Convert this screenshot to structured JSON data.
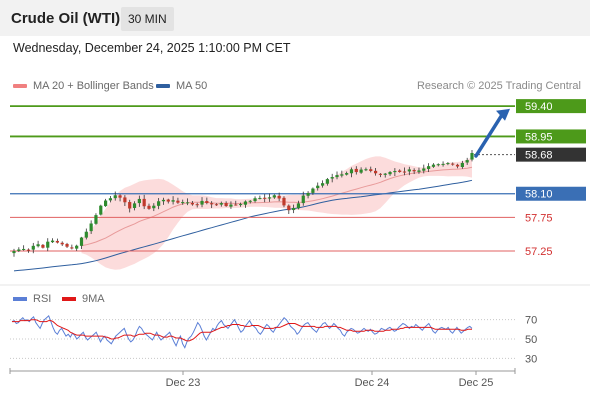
{
  "header": {
    "title": "Crude Oil (WTI)",
    "timeframe": "30 MIN",
    "date": "Wednesday, December 24, 2025 1:10:00 PM CET",
    "credit": "Research © 2025 Trading Central"
  },
  "legend": {
    "bollinger_label": "MA 20 + Bollinger Bands",
    "ma50_label": "MA 50",
    "bollinger_color": "#f08080",
    "ma50_color": "#2f5f9f"
  },
  "rsi_legend": {
    "rsi_label": "RSI",
    "ma9_label": "9MA",
    "rsi_color": "#5b7fd6",
    "ma9_color": "#e01818"
  },
  "colors": {
    "up": "#2e8b2e",
    "down": "#c0392b",
    "resistance": "#4d9a1a",
    "pivot": "#3a6fb5",
    "support": "#e06060",
    "arrow": "#2a62b0",
    "band_fill": "#fbd6d6"
  },
  "chart_data": [
    {
      "type": "candlestick",
      "x_tick_labels": [
        "Dec 23",
        "Dec 24",
        "Dec 25"
      ],
      "y_range": [
        56.85,
        59.55
      ],
      "series": [
        {
          "name": "MA 20 + Bollinger Bands"
        },
        {
          "name": "MA 50"
        }
      ],
      "levels": [
        {
          "value": 59.4,
          "label": "59.40",
          "kind": "resistance"
        },
        {
          "value": 58.95,
          "label": "58.95",
          "kind": "resistance"
        },
        {
          "value": 58.68,
          "label": "58.68",
          "kind": "last"
        },
        {
          "value": 58.1,
          "label": "58.10",
          "kind": "pivot"
        },
        {
          "value": 57.75,
          "label": "57.75",
          "kind": "support"
        },
        {
          "value": 57.25,
          "label": "57.25",
          "kind": "support"
        }
      ],
      "close_path": [
        57.25,
        57.27,
        57.3,
        57.28,
        57.33,
        57.35,
        57.32,
        57.37,
        57.4,
        57.38,
        57.36,
        57.3,
        57.28,
        57.35,
        57.45,
        57.55,
        57.65,
        57.8,
        57.92,
        58.0,
        58.05,
        58.1,
        58.02,
        57.95,
        57.9,
        57.96,
        58.0,
        57.93,
        57.88,
        57.92,
        57.98,
        58.02,
        58.0,
        57.98,
        57.97,
        57.99,
        57.97,
        57.95,
        57.96,
        57.98,
        57.97,
        57.95,
        57.96,
        57.94,
        57.93,
        57.92,
        57.94,
        57.96,
        57.98,
        58.0,
        58.02,
        58.03,
        58.05,
        58.06,
        58.08,
        58.05,
        57.95,
        57.86,
        57.88,
        57.95,
        58.05,
        58.12,
        58.18,
        58.22,
        58.26,
        58.3,
        58.35,
        58.38,
        58.4,
        58.42,
        58.45,
        58.44,
        58.47,
        58.45,
        58.42,
        58.38,
        58.36,
        58.38,
        58.41,
        58.43,
        58.42,
        58.45,
        58.47,
        58.44,
        58.46,
        58.48,
        58.5,
        58.52,
        58.55,
        58.52,
        58.58,
        58.54,
        58.5,
        58.56,
        58.62,
        58.68
      ]
    },
    {
      "type": "line",
      "title": "RSI",
      "y_ticks": [
        70,
        50,
        30
      ],
      "y_range": [
        20,
        80
      ],
      "series": [
        {
          "name": "RSI"
        },
        {
          "name": "9MA"
        }
      ],
      "rsi": [
        68,
        69,
        66,
        67,
        70,
        72,
        69,
        70,
        68,
        71,
        73,
        67,
        64,
        61,
        66,
        70,
        72,
        74,
        68,
        62,
        57,
        55,
        59,
        61,
        57,
        53,
        55,
        52,
        56,
        54,
        50,
        52,
        55,
        57,
        52,
        49,
        51,
        53,
        55,
        57,
        52,
        47,
        51,
        53,
        49,
        47,
        45,
        49,
        53,
        55,
        57,
        59,
        61,
        55,
        50,
        47,
        49,
        53,
        59,
        63,
        61,
        57,
        55,
        53,
        51,
        49,
        53,
        57,
        52,
        49,
        51,
        53,
        55,
        57,
        52,
        47,
        43,
        49,
        53,
        45,
        41,
        47,
        51,
        53,
        57,
        62,
        67,
        64,
        59,
        53,
        49,
        53,
        57,
        61,
        59,
        64,
        67,
        69,
        65,
        63,
        61,
        64,
        67,
        70,
        66,
        61,
        57,
        59,
        63,
        66,
        69,
        65,
        63,
        61,
        57,
        55,
        58,
        62,
        65,
        63,
        59,
        57,
        61,
        63,
        66,
        69,
        72,
        70,
        67,
        63,
        61,
        59,
        55,
        57,
        61,
        64,
        66,
        67,
        64,
        61,
        59,
        57,
        61,
        63,
        66,
        67,
        64,
        61,
        63,
        66,
        64,
        61,
        59,
        55,
        53,
        57,
        59,
        61,
        60,
        58,
        56,
        57,
        59,
        61,
        59,
        58,
        60,
        57,
        55,
        56,
        58,
        61,
        60,
        59,
        61,
        62,
        60,
        58,
        59,
        62,
        64,
        66,
        65,
        63,
        61,
        63,
        62,
        65,
        63,
        61,
        59,
        62,
        64,
        66,
        62,
        58,
        56,
        59,
        61,
        62,
        61,
        60,
        62,
        58,
        56,
        59,
        62,
        59,
        56,
        58,
        60,
        62,
        63,
        61
      ],
      "ma9": [
        68,
        68,
        68,
        68,
        69,
        69,
        69,
        69,
        69,
        70,
        70,
        70,
        69,
        68,
        68,
        68,
        68,
        69,
        69,
        68,
        66,
        64,
        63,
        62,
        61,
        60,
        59,
        57,
        56,
        55,
        54,
        54,
        54,
        54,
        53,
        53,
        53,
        53,
        53,
        53,
        53,
        53,
        53,
        52,
        52,
        51,
        50,
        50,
        51,
        51,
        52,
        53,
        54,
        54,
        54,
        54,
        53,
        53,
        54,
        55,
        55,
        55,
        56,
        56,
        56,
        55,
        54,
        54,
        54,
        53,
        52,
        52,
        52,
        53,
        53,
        52,
        51,
        51,
        51,
        50,
        49,
        48,
        48,
        49,
        50,
        52,
        54,
        56,
        57,
        57,
        57,
        57,
        57,
        58,
        59,
        60,
        61,
        62,
        62,
        63,
        64,
        64,
        65,
        65,
        65,
        65,
        64,
        64,
        63,
        63,
        63,
        64,
        64,
        64,
        64,
        63,
        62,
        61,
        61,
        61,
        61,
        61,
        62,
        62,
        62,
        63,
        64,
        65,
        66,
        66,
        66,
        66,
        65,
        64,
        63,
        63,
        63,
        63,
        63,
        63,
        63,
        62,
        62,
        62,
        62,
        63,
        63,
        63,
        63,
        63,
        63,
        62,
        62,
        61,
        60,
        59,
        59,
        59,
        58,
        58,
        58,
        58,
        58,
        58,
        59,
        59,
        59,
        59,
        58,
        58,
        58,
        58,
        58,
        59,
        59,
        59,
        60,
        60,
        60,
        60,
        61,
        61,
        62,
        62,
        62,
        62,
        62,
        62,
        62,
        62,
        62,
        62,
        62,
        62,
        62,
        61,
        60,
        60,
        60,
        60,
        60,
        60,
        60,
        60,
        60,
        60,
        60,
        60,
        59,
        59,
        59,
        60,
        60,
        60
      ]
    }
  ]
}
